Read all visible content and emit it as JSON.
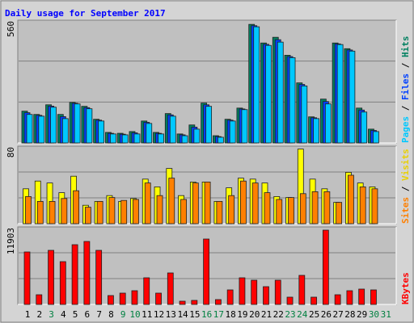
{
  "chart_data": [
    {
      "type": "bar",
      "title": "Daily usage for September 2017",
      "ylim": [
        0,
        560
      ],
      "yticks": [
        560
      ],
      "grid_divisions": 3,
      "series": [
        {
          "name": "Hits",
          "color": "#008060",
          "values": [
            145,
            130,
            174,
            130,
            185,
            167,
            108,
            48,
            44,
            52,
            100,
            48,
            134,
            41,
            82,
            182,
            33,
            108,
            159,
            541,
            456,
            482,
            400,
            274,
            119,
            200,
            456,
            430,
            159,
            63,
            null
          ]
        },
        {
          "name": "Files",
          "color": "#0040ff",
          "values": [
            138,
            126,
            168,
            120,
            181,
            161,
            104,
            44,
            40,
            46,
            94,
            44,
            128,
            37,
            72,
            174,
            29,
            104,
            155,
            535,
            450,
            471,
            394,
            267,
            115,
            189,
            452,
            424,
            150,
            57,
            null
          ]
        },
        {
          "name": "Pages",
          "color": "#00c8ff",
          "values": [
            130,
            122,
            163,
            111,
            178,
            156,
            100,
            41,
            37,
            41,
            89,
            41,
            122,
            33,
            63,
            167,
            26,
            100,
            152,
            530,
            445,
            460,
            389,
            260,
            111,
            178,
            449,
            419,
            141,
            52,
            null
          ]
        }
      ]
    },
    {
      "type": "bar",
      "ylim": [
        0,
        80
      ],
      "yticks": [
        80
      ],
      "grid_divisions": 3,
      "series": [
        {
          "name": "Visits",
          "color": "#ffff00",
          "values": [
            36,
            44,
            42,
            32,
            49,
            19,
            23,
            29,
            23,
            26,
            46,
            38,
            57,
            29,
            43,
            43,
            23,
            37,
            47,
            46,
            42,
            28,
            27,
            77,
            46,
            36,
            22,
            53,
            42,
            38,
            null
          ]
        },
        {
          "name": "Sites",
          "color": "#ff8000",
          "values": [
            28,
            23,
            23,
            26,
            34,
            17,
            23,
            27,
            24,
            25,
            42,
            29,
            47,
            25,
            42,
            43,
            23,
            29,
            44,
            42,
            32,
            25,
            27,
            31,
            33,
            33,
            22,
            50,
            38,
            36,
            null
          ]
        }
      ]
    },
    {
      "type": "bar",
      "ylim": [
        0,
        11903
      ],
      "yticks": [
        11903
      ],
      "grid_divisions": 3,
      "categories": [
        "1",
        "2",
        "3",
        "4",
        "5",
        "6",
        "7",
        "8",
        "9",
        "10",
        "11",
        "12",
        "13",
        "14",
        "15",
        "16",
        "17",
        "18",
        "19",
        "20",
        "21",
        "22",
        "23",
        "24",
        "25",
        "26",
        "27",
        "28",
        "29",
        "30",
        "31"
      ],
      "category_colors": [
        "#000",
        "#000",
        "#008040",
        "#000",
        "#000",
        "#000",
        "#000",
        "#000",
        "#008040",
        "#008040",
        "#000",
        "#000",
        "#000",
        "#000",
        "#000",
        "#008040",
        "#008040",
        "#000",
        "#000",
        "#000",
        "#000",
        "#000",
        "#008040",
        "#008040",
        "#000",
        "#000",
        "#000",
        "#000",
        "#000",
        "#008040",
        "#008040"
      ],
      "series": [
        {
          "name": "KBytes",
          "color": "#ff0000",
          "values": [
            8059,
            1488,
            8307,
            6571,
            9175,
            9671,
            8307,
            1364,
            1736,
            2108,
            4092,
            1736,
            4836,
            496,
            620,
            10043,
            744,
            2232,
            4092,
            3720,
            2728,
            3720,
            1116,
            4464,
            1116,
            11407,
            1488,
            2108,
            2356,
            2232,
            null
          ]
        }
      ]
    }
  ]
}
